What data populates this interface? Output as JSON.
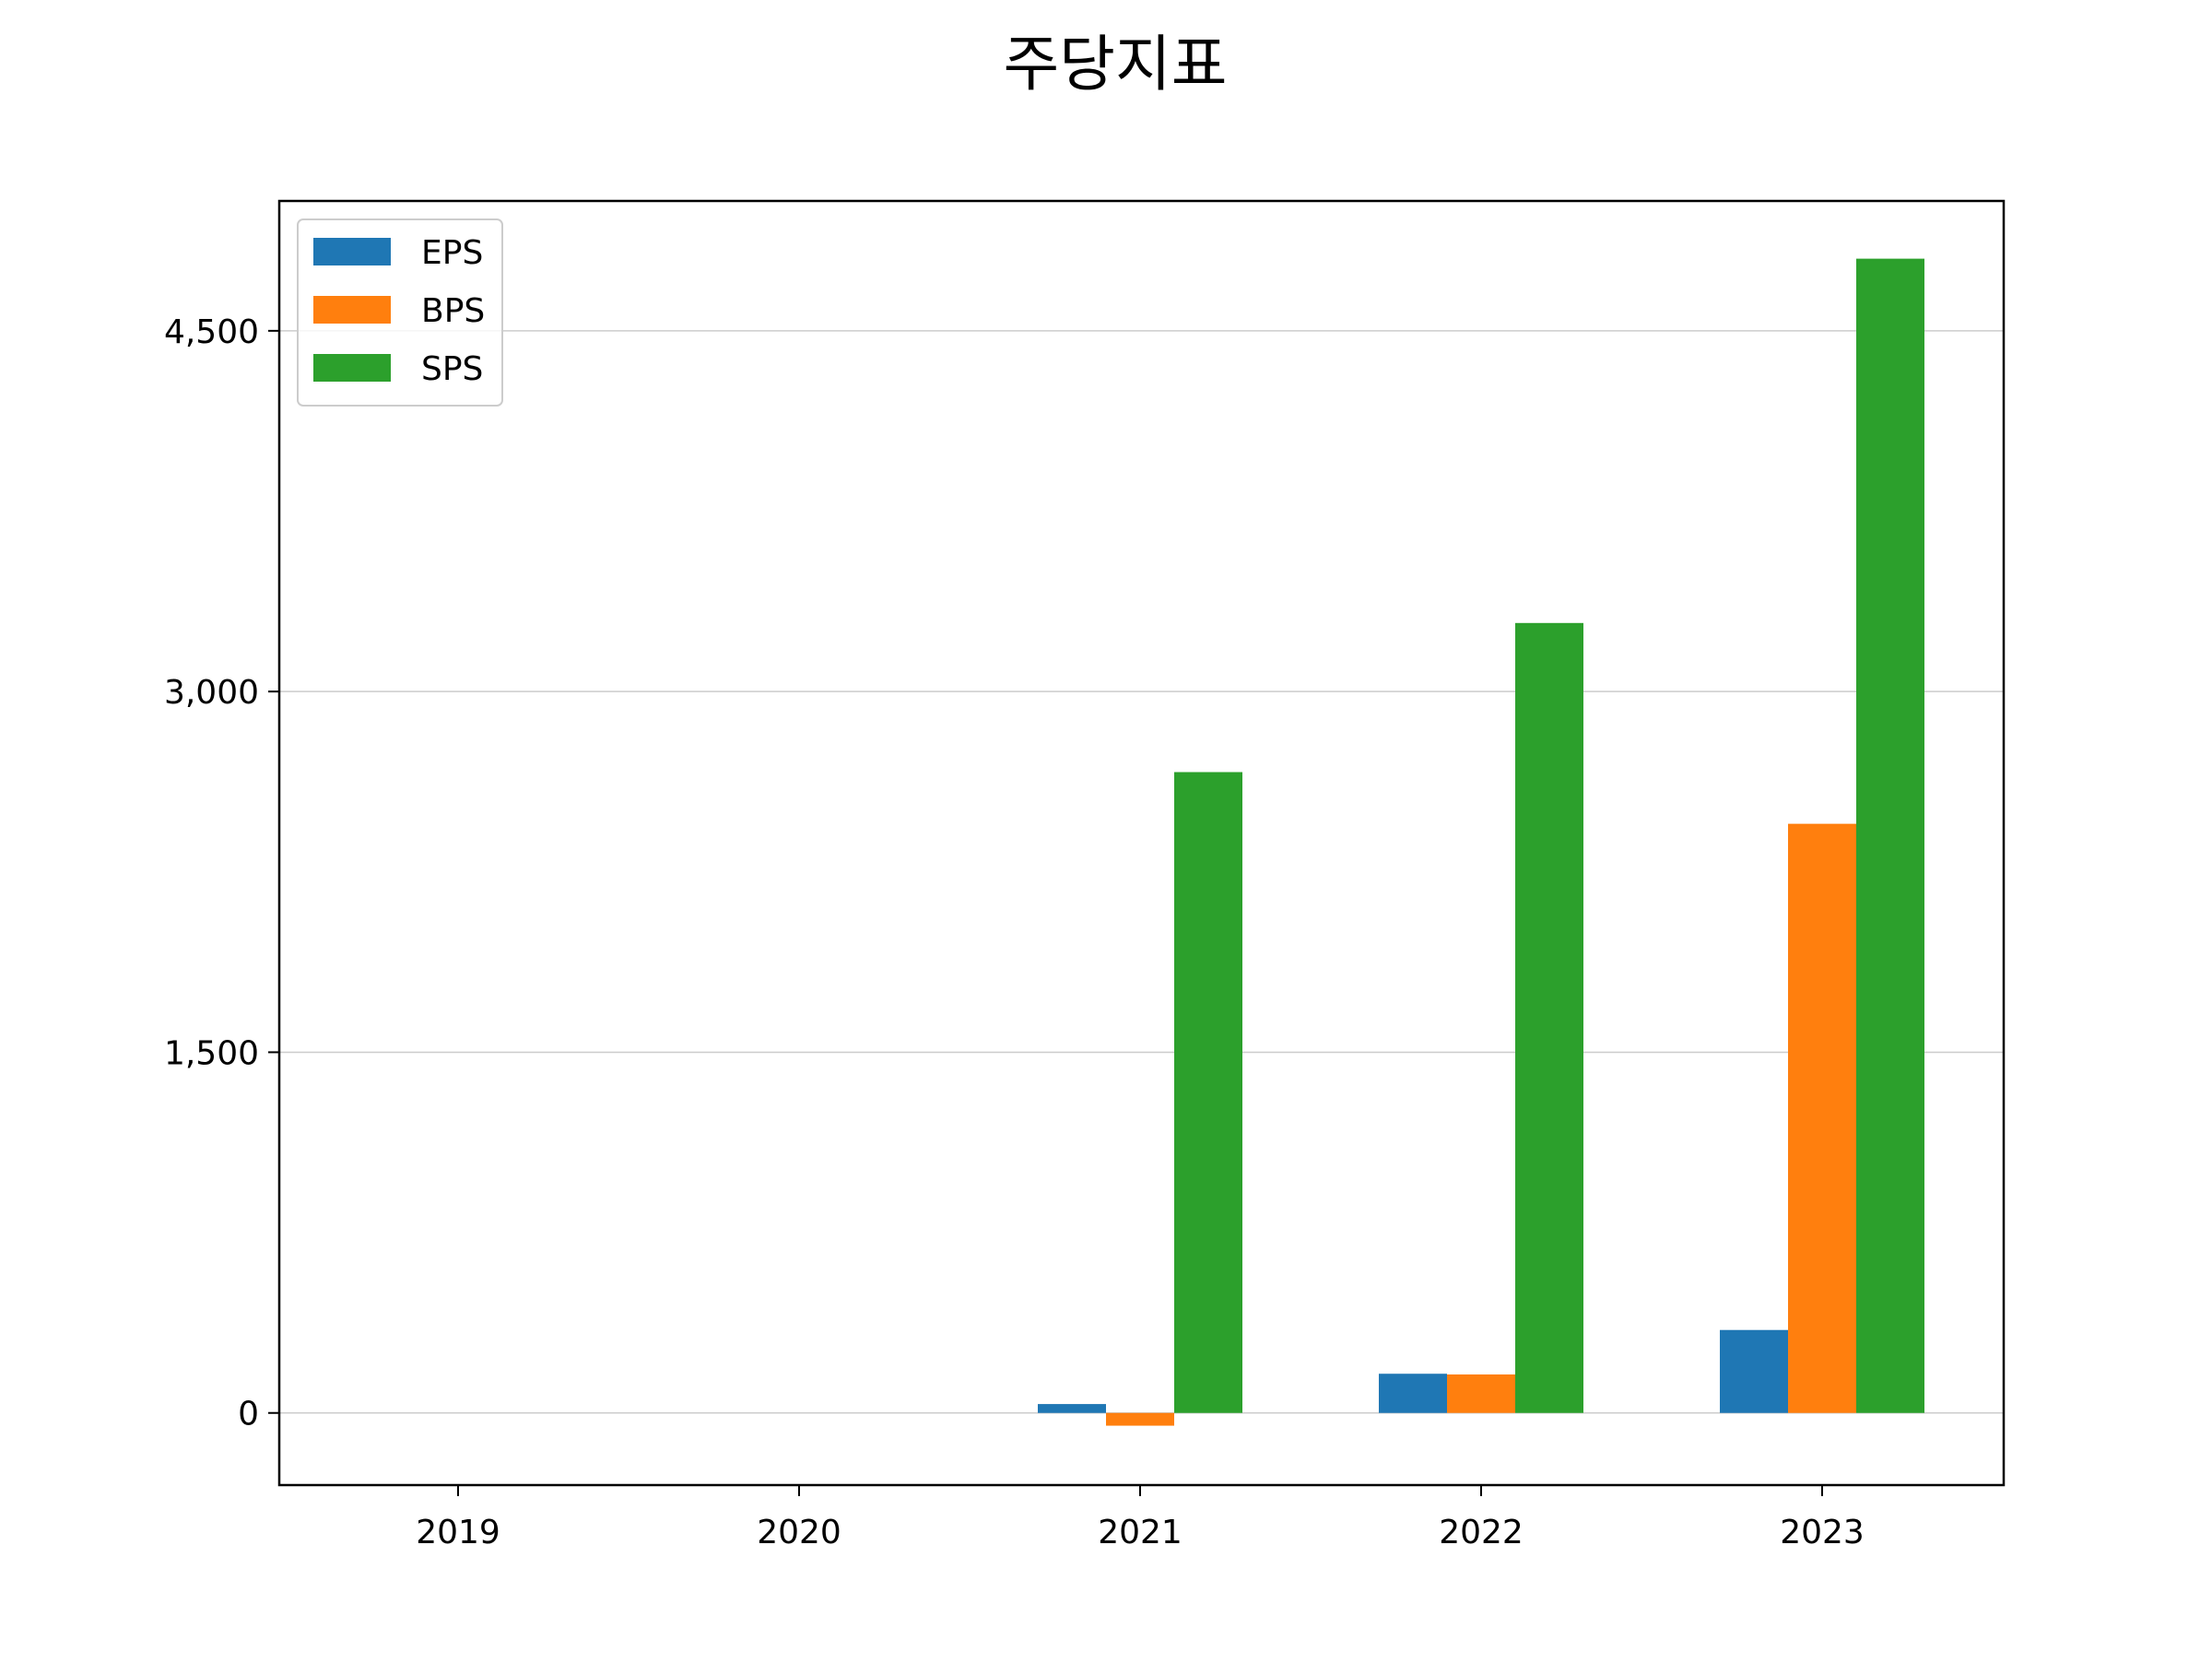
{
  "chart_data": {
    "type": "bar",
    "title": "주당지표",
    "xlabel": "",
    "ylabel": "",
    "categories": [
      "2019",
      "2020",
      "2021",
      "2022",
      "2023"
    ],
    "series": [
      {
        "name": "EPS",
        "color": "#1f77b4",
        "values": [
          0,
          0,
          37,
          163,
          345
        ]
      },
      {
        "name": "BPS",
        "color": "#ff7f0e",
        "values": [
          0,
          0,
          -53,
          160,
          2450
        ]
      },
      {
        "name": "SPS",
        "color": "#2ca02c",
        "values": [
          0,
          0,
          2665,
          3285,
          4800
        ]
      }
    ],
    "ylim": [
      -300,
      5040
    ],
    "yticks": [
      0,
      1500,
      3000,
      4500
    ],
    "ytick_labels": [
      "0",
      "1,500",
      "3,000",
      "4,500"
    ],
    "grid": "y",
    "legend": "top-left"
  }
}
